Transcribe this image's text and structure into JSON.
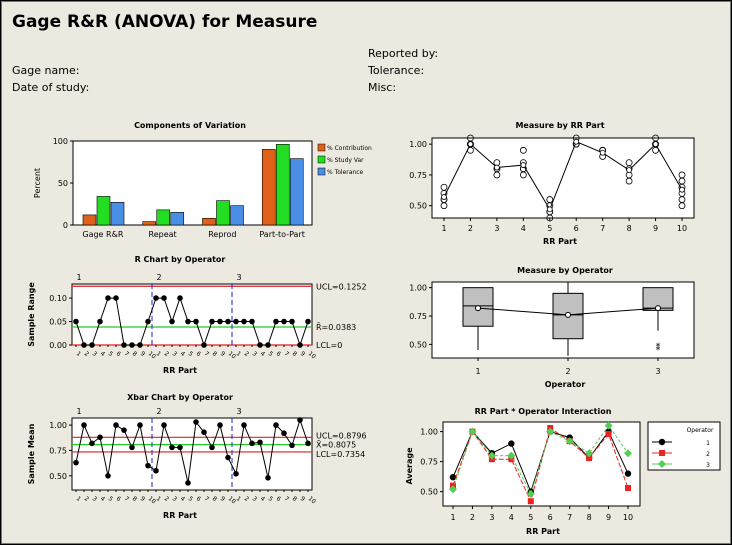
{
  "title": "Gage R&R (ANOVA) for Measure",
  "meta": {
    "gage_name": "Gage name:",
    "date_of_study": "Date of study:",
    "reported_by": "Reported by:",
    "tolerance": "Tolerance:",
    "misc": "Misc:"
  },
  "chart_data": [
    {
      "id": "components",
      "type": "bar",
      "title": "Components of Variation",
      "ylabel": "Percent",
      "ylim": [
        0,
        100
      ],
      "yticks": [
        "0",
        "50",
        "100"
      ],
      "categories": [
        "Gage R&R",
        "Repeat",
        "Reprod",
        "Part-to-Part"
      ],
      "series": [
        {
          "name": "% Contribution",
          "color": "#e0601a",
          "values": [
            12,
            4,
            8,
            90
          ]
        },
        {
          "name": "% Study Var",
          "color": "#22dd22",
          "values": [
            34,
            18,
            29,
            96
          ]
        },
        {
          "name": "% Tolerance",
          "color": "#4a8fe6",
          "values": [
            27,
            15,
            23,
            79
          ]
        }
      ]
    },
    {
      "id": "measure_by_part",
      "type": "scatter",
      "title": "Measure by RR Part",
      "xlabel": "RR Part",
      "ylim": [
        0.4,
        1.05
      ],
      "yticks": [
        "0.50",
        "0.75",
        "1.00"
      ],
      "x": [
        "1",
        "2",
        "3",
        "4",
        "5",
        "6",
        "7",
        "8",
        "9",
        "10"
      ],
      "points": [
        [
          0.5,
          0.55,
          0.6,
          0.65,
          0.55
        ],
        [
          0.95,
          1.0,
          1.05,
          1.0,
          1.0
        ],
        [
          0.8,
          0.85,
          0.75,
          0.8
        ],
        [
          0.8,
          0.85,
          0.95,
          0.75,
          0.8
        ],
        [
          0.4,
          0.45,
          0.5,
          0.55,
          0.45
        ],
        [
          1.0,
          1.05,
          1.0,
          1.0
        ],
        [
          0.95,
          0.9,
          0.95
        ],
        [
          0.75,
          0.8,
          0.85,
          0.7
        ],
        [
          0.95,
          1.0,
          1.05,
          1.0
        ],
        [
          0.5,
          0.55,
          0.6,
          0.65,
          0.7,
          0.75
        ]
      ],
      "means": [
        0.57,
        1.0,
        0.81,
        0.83,
        0.47,
        1.02,
        0.93,
        0.79,
        1.0,
        0.63
      ]
    },
    {
      "id": "r_chart",
      "type": "line",
      "title": "R Chart by Operator",
      "xlabel": "RR Part",
      "ylabel": "Sample Range",
      "ylim": [
        0,
        0.13
      ],
      "yticks": [
        "0.00",
        "0.05",
        "0.10"
      ],
      "operators": [
        "1",
        "2",
        "3"
      ],
      "xtick_labels": [
        "1",
        "2",
        "3",
        "4",
        "5",
        "6",
        "7",
        "8",
        "9",
        "10",
        "1",
        "2",
        "3",
        "4",
        "5",
        "6",
        "7",
        "8",
        "9",
        "10",
        "1",
        "2",
        "3",
        "4",
        "5",
        "6",
        "7",
        "8",
        "9",
        "10"
      ],
      "values": [
        0.05,
        0,
        0,
        0.05,
        0.1,
        0.1,
        0,
        0,
        0,
        0.05,
        0.1,
        0.1,
        0.05,
        0.1,
        0.05,
        0.05,
        0,
        0.05,
        0.05,
        0.05,
        0.05,
        0.05,
        0.05,
        0,
        0,
        0.05,
        0.05,
        0.05,
        0,
        0.05
      ],
      "limits": {
        "UCL": 0.1252,
        "center": 0.0383,
        "LCL": 0
      },
      "limit_labels": {
        "ucl": "UCL=0.1252",
        "center": "R̄=0.0383",
        "lcl": "LCL=0"
      }
    },
    {
      "id": "measure_by_operator",
      "type": "box",
      "title": "Measure by Operator",
      "xlabel": "Operator",
      "ylim": [
        0.38,
        1.05
      ],
      "yticks": [
        "0.50",
        "0.75",
        "1.00"
      ],
      "categories": [
        "1",
        "2",
        "3"
      ],
      "boxes": [
        {
          "min": 0.45,
          "q1": 0.66,
          "median": 0.84,
          "q3": 1.0,
          "max": 1.0,
          "mean": 0.82
        },
        {
          "min": 0.4,
          "q1": 0.55,
          "median": 0.76,
          "q3": 0.95,
          "max": 1.05,
          "mean": 0.76
        },
        {
          "min": 0.62,
          "q1": 0.8,
          "median": 0.82,
          "q3": 1.0,
          "max": 1.0,
          "mean": 0.82,
          "outliers": [
            0.45,
            0.48
          ]
        }
      ]
    },
    {
      "id": "xbar_chart",
      "type": "line",
      "title": "Xbar Chart by Operator",
      "xlabel": "RR Part",
      "ylabel": "Sample Mean",
      "ylim": [
        0.36,
        1.07
      ],
      "yticks": [
        "0.50",
        "0.75",
        "1.00"
      ],
      "operators": [
        "1",
        "2",
        "3"
      ],
      "xtick_labels": [
        "1",
        "2",
        "3",
        "4",
        "5",
        "6",
        "7",
        "8",
        "9",
        "10",
        "1",
        "2",
        "3",
        "4",
        "5",
        "6",
        "7",
        "8",
        "9",
        "10",
        "1",
        "2",
        "3",
        "4",
        "5",
        "6",
        "7",
        "8",
        "9",
        "10"
      ],
      "values": [
        0.63,
        1.0,
        0.82,
        0.88,
        0.5,
        1.0,
        0.95,
        0.78,
        1.0,
        0.6,
        0.55,
        1.0,
        0.78,
        0.78,
        0.43,
        1.03,
        0.93,
        0.78,
        1.0,
        0.68,
        0.52,
        1.0,
        0.82,
        0.83,
        0.48,
        1.0,
        0.92,
        0.8,
        1.05,
        0.82
      ],
      "limits": {
        "UCL": 0.8796,
        "center": 0.8075,
        "LCL": 0.7354
      },
      "limit_labels": {
        "ucl": "UCL=0.8796",
        "center": "X̄=0.8075",
        "lcl": "LCL=0.7354"
      }
    },
    {
      "id": "interaction",
      "type": "line",
      "title": "RR Part * Operator Interaction",
      "xlabel": "RR Part",
      "ylabel": "Average",
      "ylim": [
        0.38,
        1.08
      ],
      "yticks": [
        "0.50",
        "0.75",
        "1.00"
      ],
      "x": [
        "1",
        "2",
        "3",
        "4",
        "5",
        "6",
        "7",
        "8",
        "9",
        "10"
      ],
      "legend_title": "Operator",
      "series": [
        {
          "name": "1",
          "color": "#000000",
          "marker": "circle",
          "values": [
            0.62,
            1.0,
            0.82,
            0.9,
            0.5,
            1.0,
            0.95,
            0.78,
            1.0,
            0.65
          ]
        },
        {
          "name": "2",
          "color": "#ee2222",
          "marker": "square",
          "values": [
            0.55,
            1.0,
            0.77,
            0.77,
            0.42,
            1.03,
            0.92,
            0.78,
            0.98,
            0.53
          ]
        },
        {
          "name": "3",
          "color": "#55cc55",
          "marker": "diamond",
          "values": [
            0.52,
            1.0,
            0.8,
            0.8,
            0.48,
            1.0,
            0.92,
            0.82,
            1.05,
            0.82
          ]
        }
      ]
    }
  ]
}
